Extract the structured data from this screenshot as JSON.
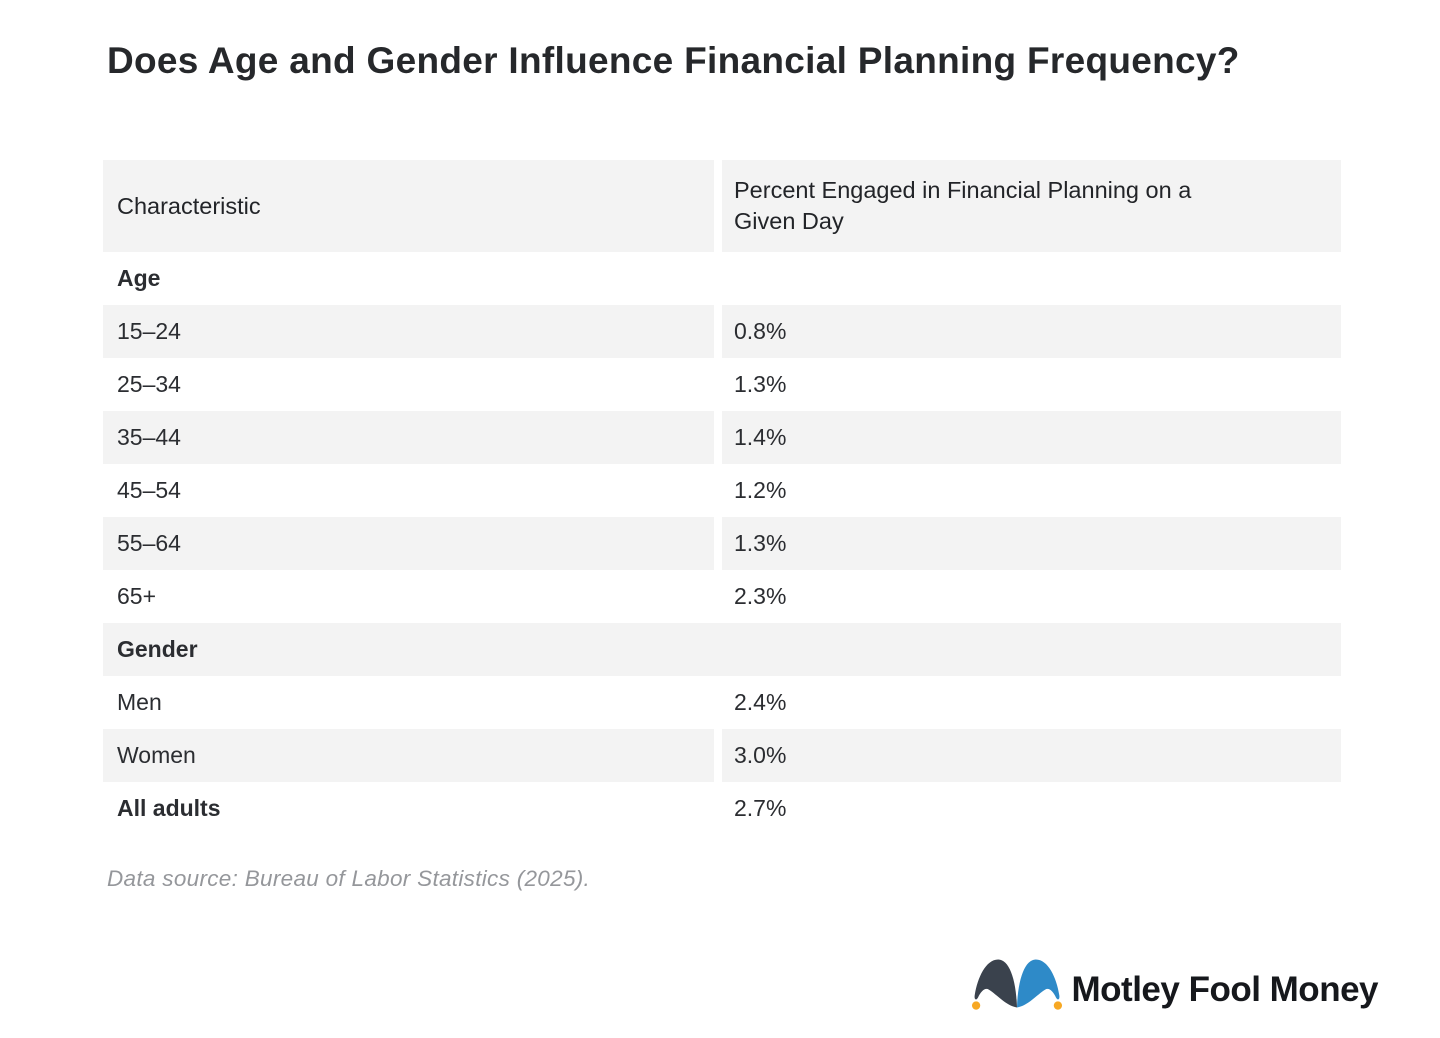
{
  "title": "Does Age and Gender Influence Financial Planning Frequency?",
  "table": {
    "columns": [
      "Characteristic",
      "Percent Engaged in Financial Planning on a Given Day"
    ],
    "rows": [
      {
        "type": "section",
        "label": "Age"
      },
      {
        "type": "data",
        "label": "15–24",
        "value": "0.8%"
      },
      {
        "type": "data",
        "label": "25–34",
        "value": "1.3%"
      },
      {
        "type": "data",
        "label": "35–44",
        "value": "1.4%"
      },
      {
        "type": "data",
        "label": "45–54",
        "value": "1.2%"
      },
      {
        "type": "data",
        "label": "55–64",
        "value": "1.3%"
      },
      {
        "type": "data",
        "label": "65+",
        "value": "2.3%"
      },
      {
        "type": "section",
        "label": "Gender"
      },
      {
        "type": "data",
        "label": "Men",
        "value": "2.4%"
      },
      {
        "type": "data",
        "label": "Women",
        "value": "3.0%"
      },
      {
        "type": "data",
        "label": "All adults",
        "value": "2.7%",
        "emphasis": true
      }
    ]
  },
  "source_note": "Data source: Bureau of Labor Statistics (2025).",
  "logo": {
    "text": "Motley Fool Money",
    "colors": {
      "hat_left_lobe": "#3a424d",
      "hat_right_lobe": "#2e8ac8",
      "bells": "#f7a823",
      "wordmark": "#16181c"
    }
  },
  "chart_data": {
    "type": "table",
    "title": "Does Age and Gender Influence Financial Planning Frequency?",
    "columns": [
      "Characteristic",
      "Percent Engaged in Financial Planning on a Given Day"
    ],
    "unit": "%",
    "groups": [
      {
        "name": "Age",
        "categories": [
          "15–24",
          "25–34",
          "35–44",
          "45–54",
          "55–64",
          "65+"
        ],
        "values": [
          0.8,
          1.3,
          1.4,
          1.2,
          1.3,
          2.3
        ]
      },
      {
        "name": "Gender",
        "categories": [
          "Men",
          "Women"
        ],
        "values": [
          2.4,
          3.0
        ]
      }
    ],
    "overall": {
      "category": "All adults",
      "value": 2.7
    },
    "source": "Bureau of Labor Statistics (2025)"
  }
}
